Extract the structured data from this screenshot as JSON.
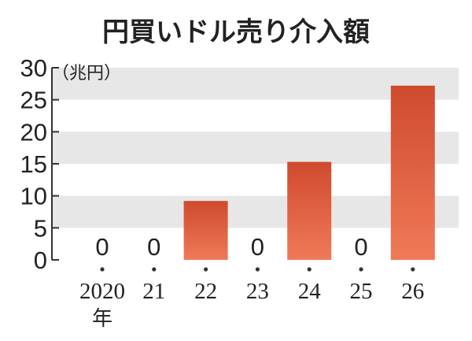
{
  "chart_data": {
    "type": "bar",
    "title": "円買いドル売り介入額",
    "unit_label": "（兆円）",
    "categories": [
      "2020",
      "21",
      "22",
      "23",
      "24",
      "25",
      "26"
    ],
    "x_first_suffix": "年",
    "values": [
      0,
      0,
      9.2,
      0,
      15.3,
      0,
      27.2
    ],
    "zero_labels": [
      "0",
      "0",
      "",
      "0",
      "",
      "0",
      ""
    ],
    "ylim": [
      0,
      30
    ],
    "yticks": [
      0,
      5,
      10,
      15,
      20,
      25,
      30
    ],
    "grid_bands": "alternating",
    "colors": {
      "bar_top": "#cf4a2e",
      "bar_bottom": "#ef7a58",
      "band": "#e7e7e7",
      "axis": "#333333"
    }
  }
}
